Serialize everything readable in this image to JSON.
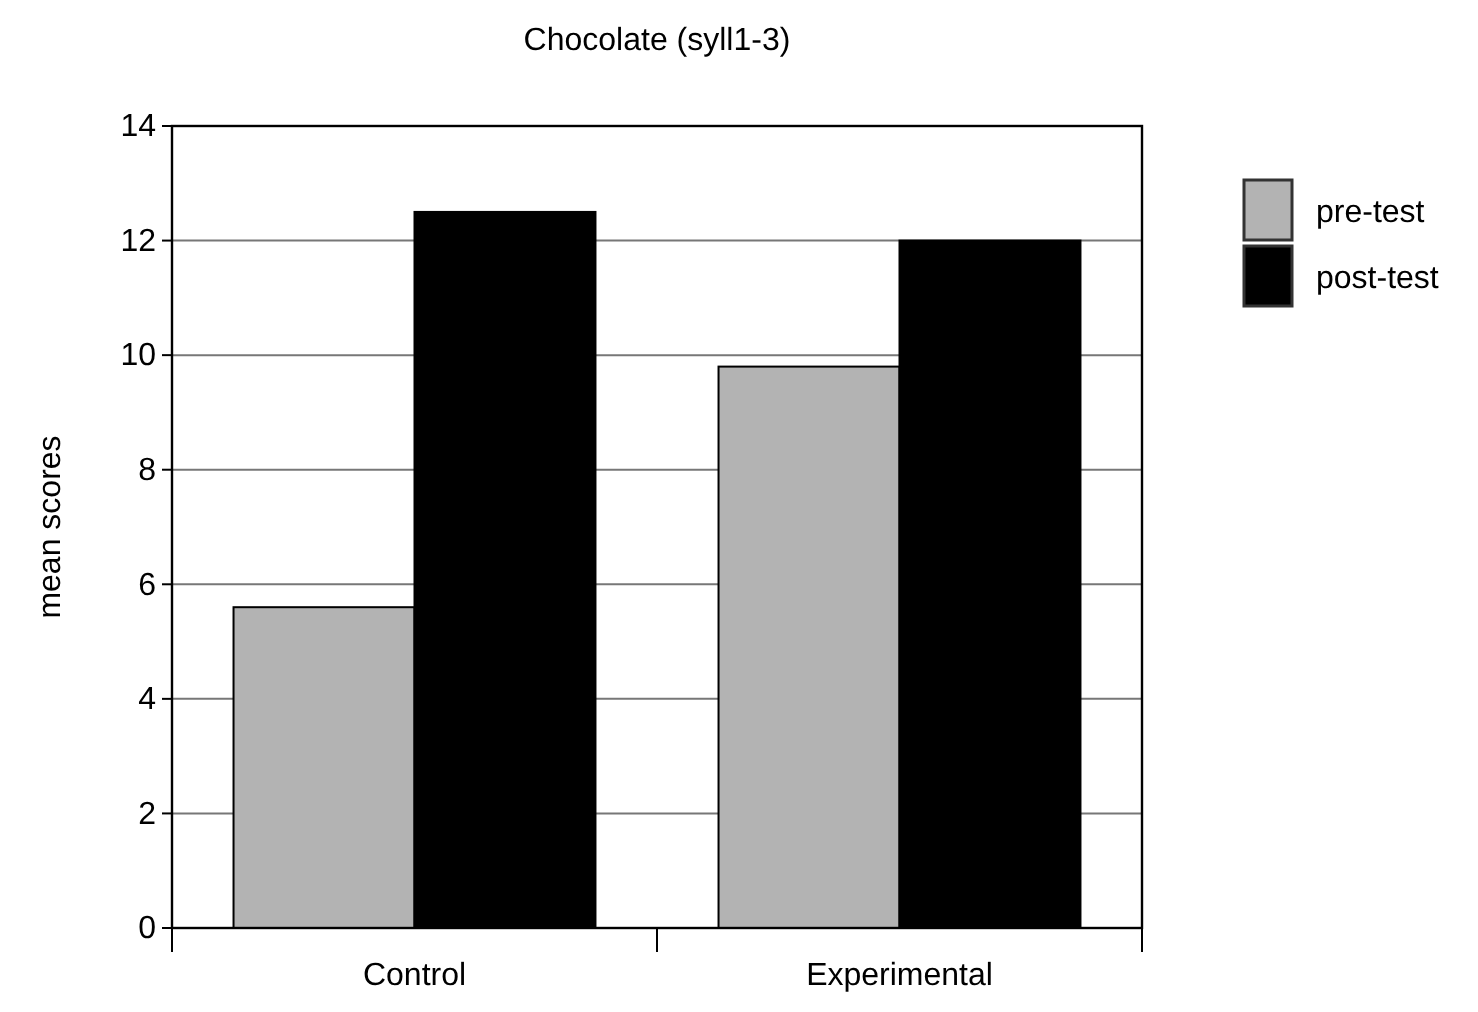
{
  "chart_data": {
    "type": "bar",
    "title": "Chocolate (syll1-3)",
    "ylabel": "mean scores",
    "categories": [
      "Control",
      "Experimental"
    ],
    "series": [
      {
        "name": "pre-test",
        "color": "#b3b3b3",
        "values": [
          5.6,
          9.8
        ]
      },
      {
        "name": "post-test",
        "color": "#000000",
        "values": [
          12.5,
          12.0
        ]
      }
    ],
    "ylim": [
      0,
      14
    ],
    "yticks": [
      0,
      2,
      4,
      6,
      8,
      10,
      12,
      14
    ],
    "grid": "y",
    "legend": "right"
  }
}
